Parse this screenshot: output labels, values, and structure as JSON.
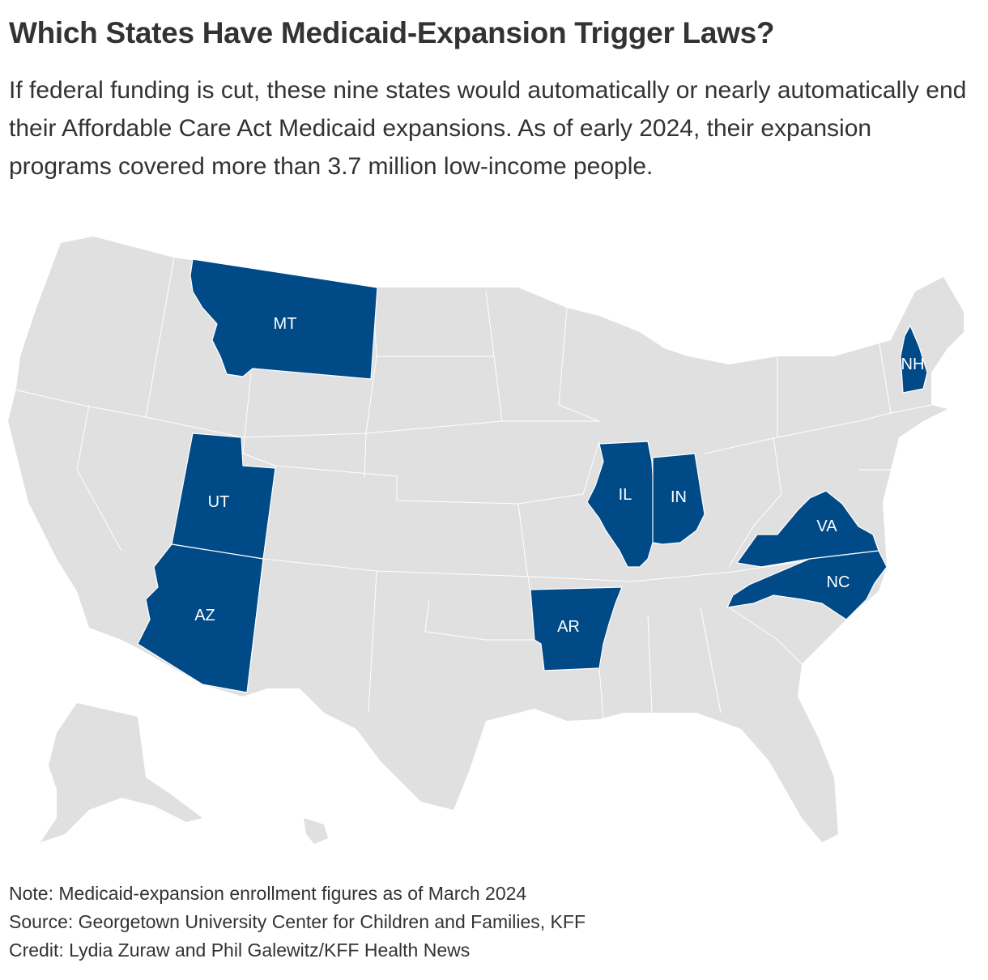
{
  "header": {
    "title": "Which States Have Medicaid-Expansion Trigger Laws?",
    "subtitle": "If federal funding is cut, these nine states would automatically or nearly automatically end their Affordable Care Act Medicaid expansions. As of early 2024, their expansion programs covered more than 3.7 million low-income people."
  },
  "colors": {
    "highlight": "#004a87",
    "other": "#e0e0e0",
    "border": "#ffffff"
  },
  "map": {
    "highlighted_states": [
      "MT",
      "UT",
      "AZ",
      "AR",
      "IL",
      "IN",
      "VA",
      "NC",
      "NH"
    ],
    "labels": {
      "MT": "MT",
      "UT": "UT",
      "AZ": "AZ",
      "AR": "AR",
      "IL": "IL",
      "IN": "IN",
      "VA": "VA",
      "NC": "NC",
      "NH": "NH"
    }
  },
  "footer": {
    "note": "Note: Medicaid-expansion enrollment figures as of March 2024",
    "source": "Source: Georgetown University Center for Children and Families, KFF",
    "credit": "Credit: Lydia Zuraw and Phil Galewitz/KFF Health News"
  }
}
